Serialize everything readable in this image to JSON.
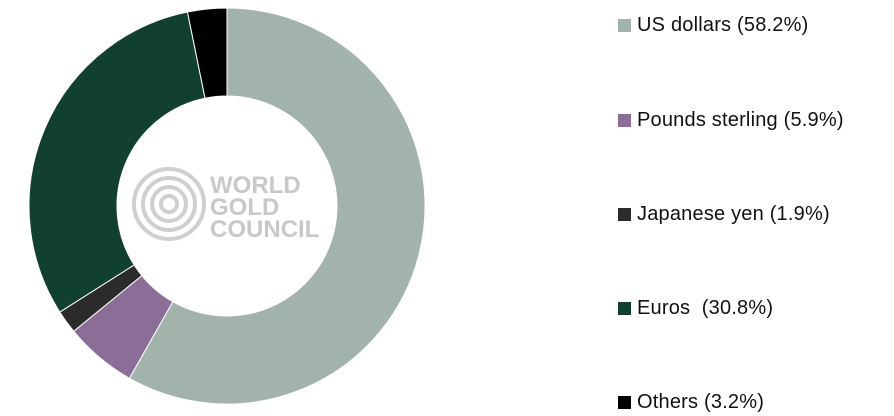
{
  "chart_data": {
    "type": "pie",
    "donut": true,
    "categories": [
      "US dollars",
      "Pounds sterling",
      "Japanese yen",
      "Euros",
      "Others"
    ],
    "values": [
      58.2,
      5.9,
      1.9,
      30.8,
      3.2
    ],
    "colors": [
      "#a1b3aa",
      "#8a6e98",
      "#2b2b2b",
      "#12402f",
      "#000000"
    ],
    "legend_labels": [
      "US dollars (58.2%)",
      "Pounds sterling (5.9%)",
      "Japanese yen (1.9%)",
      "Euros  (30.8%)",
      "Others (3.2%)"
    ],
    "legend_position": "right",
    "start_angle_deg": 0,
    "direction": "clockwise"
  },
  "watermark": {
    "lines": [
      "WORLD",
      "GOLD",
      "COUNCIL"
    ],
    "color": "#c8c8c8"
  }
}
